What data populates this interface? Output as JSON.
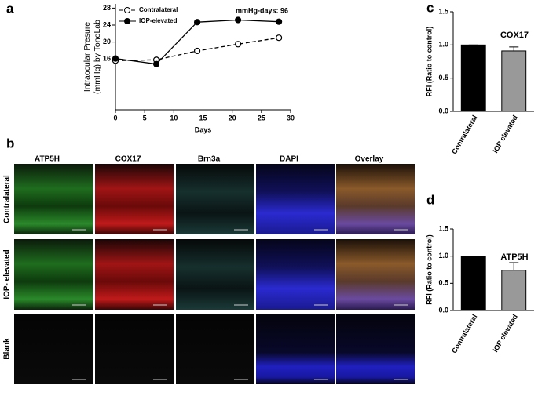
{
  "chart_data": [
    {
      "type": "line",
      "annotation": "mmHg-days: 96",
      "xlabel": "Days",
      "ylabel": [
        "Intraocular Presure",
        "(mmHg) by TonoLab"
      ],
      "x": [
        0,
        7,
        14,
        21,
        28
      ],
      "series": [
        {
          "name": "Contralateral",
          "color": "#000000",
          "linestyle": "dashed",
          "marker_fill": "#ffffff",
          "values": [
            15.6,
            15.8,
            17.9,
            19.5,
            21
          ]
        },
        {
          "name": "IOP-elevated",
          "color": "#000000",
          "linestyle": "solid",
          "marker_fill": "#000000",
          "values": [
            16.1,
            14.8,
            24.7,
            25.2,
            24.8
          ]
        }
      ],
      "xlim": [
        0,
        30
      ],
      "xticks": [
        0,
        5,
        10,
        15,
        20,
        25,
        30
      ],
      "ylim": [
        4,
        29
      ],
      "yticks": [
        16,
        20,
        24,
        28
      ]
    },
    {
      "type": "bar",
      "title": "COX17",
      "ylabel": "RFI (Ratio to control)",
      "categories": [
        "Contralateral",
        "IOP elevated"
      ],
      "values": [
        1.0,
        0.91
      ],
      "errors": [
        0,
        0.06
      ],
      "colors": [
        "#000000",
        "#999999"
      ],
      "ylim": [
        0,
        1.5
      ],
      "yticks": [
        {
          "value": 0,
          "label": "0.0"
        },
        {
          "value": 0.5,
          "label": "0.5"
        },
        {
          "value": 1,
          "label": "1.0"
        },
        {
          "value": 1.5,
          "label": "1.5"
        }
      ]
    },
    {
      "type": "bar",
      "title": "ATP5H",
      "ylabel": "RFI (Ratio to control)",
      "categories": [
        "Contralateral",
        "IOP elevated"
      ],
      "values": [
        1.0,
        0.74
      ],
      "errors": [
        0,
        0.14
      ],
      "colors": [
        "#000000",
        "#999999"
      ],
      "ylim": [
        0,
        1.5
      ],
      "yticks": [
        {
          "value": 0,
          "label": "0.0"
        },
        {
          "value": 0.5,
          "label": "0.5"
        },
        {
          "value": 1,
          "label": "1.0"
        },
        {
          "value": 1.5,
          "label": "1.5"
        }
      ]
    }
  ],
  "figure": {
    "panels": [
      "a",
      "b",
      "c",
      "d"
    ],
    "columns": [
      "ATP5H",
      "COX17",
      "Brn3a",
      "DAPI",
      "Overlay"
    ],
    "rows": [
      "Contralateral",
      "IOP- elevated",
      "Blank"
    ]
  }
}
